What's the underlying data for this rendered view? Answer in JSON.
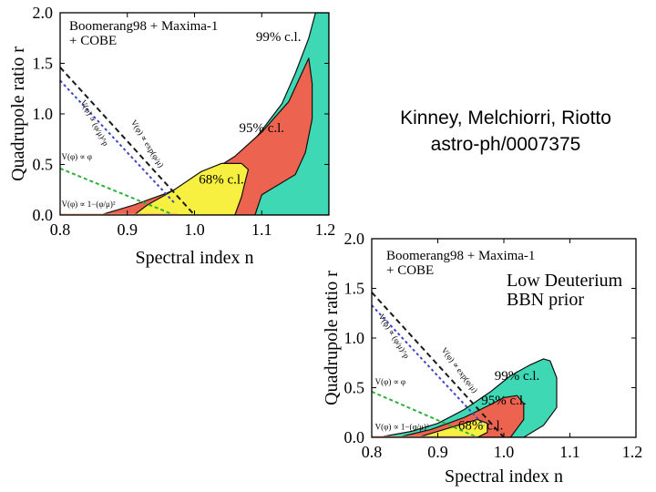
{
  "credit": {
    "authors": "Kinney, Melchiorri, Riotto",
    "reference": "astro-ph/0007375"
  },
  "colors": {
    "cl99": "#3fd8b4",
    "cl95": "#ec6350",
    "cl68": "#f7f040",
    "outline": "#111111",
    "exp_line": "#1a1a1a",
    "phi_p_line": "#3f45c9",
    "phi_line": "#2db13a",
    "one_minus_line": "#e8a080"
  },
  "chart_data": [
    {
      "type": "area",
      "title": "",
      "legend": [
        "Boomerang98 + Maxima-1",
        "+ COBE"
      ],
      "xlabel": "Spectral index n",
      "ylabel": "Quadrupole ratio r",
      "xlim": [
        0.8,
        1.2
      ],
      "ylim": [
        0.0,
        2.0
      ],
      "xticks": [
        "0.8",
        "0.9",
        "1.0",
        "1.1",
        "1.2"
      ],
      "yticks": [
        "0.0",
        "0.5",
        "1.0",
        "1.5",
        "2.0"
      ],
      "regions": [
        {
          "label": "99% c.l.",
          "label_at": [
            1.125,
            1.72
          ],
          "points": [
            [
              0.83,
              0.0
            ],
            [
              0.86,
              0.0
            ],
            [
              0.91,
              0.06
            ],
            [
              0.95,
              0.15
            ],
            [
              1.0,
              0.3
            ],
            [
              1.05,
              0.5
            ],
            [
              1.09,
              0.75
            ],
            [
              1.13,
              1.1
            ],
            [
              1.15,
              1.4
            ],
            [
              1.17,
              1.75
            ],
            [
              1.18,
              2.0
            ],
            [
              1.2,
              2.0
            ],
            [
              1.2,
              0.0
            ]
          ]
        },
        {
          "label": "95% c.l.",
          "label_at": [
            1.1,
            0.82
          ],
          "points": [
            [
              0.86,
              0.0
            ],
            [
              0.91,
              0.1
            ],
            [
              0.96,
              0.22
            ],
            [
              1.01,
              0.37
            ],
            [
              1.06,
              0.58
            ],
            [
              1.1,
              0.82
            ],
            [
              1.14,
              1.12
            ],
            [
              1.165,
              1.48
            ],
            [
              1.17,
              1.55
            ],
            [
              1.175,
              1.3
            ],
            [
              1.175,
              0.95
            ],
            [
              1.165,
              0.62
            ],
            [
              1.15,
              0.4
            ],
            [
              1.12,
              0.28
            ],
            [
              1.1,
              0.2
            ],
            [
              1.09,
              0.0
            ]
          ]
        },
        {
          "label": "68% c.l.",
          "label_at": [
            1.04,
            0.31
          ],
          "points": [
            [
              0.91,
              0.0
            ],
            [
              0.93,
              0.1
            ],
            [
              0.97,
              0.25
            ],
            [
              1.01,
              0.43
            ],
            [
              1.04,
              0.51
            ],
            [
              1.07,
              0.51
            ],
            [
              1.08,
              0.45
            ],
            [
              1.075,
              0.32
            ],
            [
              1.07,
              0.18
            ],
            [
              1.06,
              0.0
            ]
          ]
        }
      ],
      "series": [
        {
          "name": "V(φ) ∝ exp(φ/μ)",
          "x": [
            0.8,
            1.0
          ],
          "y": [
            1.46,
            0.0
          ]
        },
        {
          "name": "V(φ) ∝ (φ/μ)^p",
          "x": [
            0.8,
            0.97
          ],
          "y": [
            1.33,
            0.12
          ]
        },
        {
          "name": "V(φ) ∝ φ",
          "x": [
            0.8,
            0.97
          ],
          "y": [
            0.46,
            0.0
          ]
        },
        {
          "name": "V(φ) ∝ 1−(φ/μ)²",
          "x": [
            0.8,
            0.975
          ],
          "y": [
            0.0,
            0.0
          ]
        }
      ]
    },
    {
      "type": "area",
      "title": "",
      "legend": [
        "Boomerang98 + Maxima-1",
        "+ COBE"
      ],
      "annotation": [
        "Low Deuterium",
        "BBN prior"
      ],
      "xlabel": "Spectral index n",
      "ylabel": "Quadrupole ratio r",
      "xlim": [
        0.8,
        1.2
      ],
      "ylim": [
        0.0,
        2.0
      ],
      "xticks": [
        "0.8",
        "0.9",
        "1.0",
        "1.1",
        "1.2"
      ],
      "yticks": [
        "0.0",
        "0.5",
        "1.0",
        "1.5",
        "2.0"
      ],
      "regions": [
        {
          "label": "99% c.l.",
          "label_at": [
            1.02,
            0.58
          ],
          "points": [
            [
              0.81,
              0.0
            ],
            [
              0.86,
              0.06
            ],
            [
              0.9,
              0.14
            ],
            [
              0.94,
              0.28
            ],
            [
              0.98,
              0.46
            ],
            [
              1.01,
              0.62
            ],
            [
              1.04,
              0.73
            ],
            [
              1.06,
              0.79
            ],
            [
              1.07,
              0.77
            ],
            [
              1.08,
              0.6
            ],
            [
              1.08,
              0.3
            ],
            [
              1.06,
              0.12
            ],
            [
              1.03,
              0.0
            ]
          ]
        },
        {
          "label": "95% c.l.",
          "label_at": [
            1.0,
            0.33
          ],
          "points": [
            [
              0.84,
              0.0
            ],
            [
              0.89,
              0.08
            ],
            [
              0.94,
              0.2
            ],
            [
              0.98,
              0.33
            ],
            [
              1.0,
              0.4
            ],
            [
              1.02,
              0.42
            ],
            [
              1.03,
              0.34
            ],
            [
              1.03,
              0.18
            ],
            [
              1.01,
              0.0
            ]
          ]
        },
        {
          "label": "68% c.l.",
          "label_at": [
            0.965,
            0.08
          ],
          "points": [
            [
              0.87,
              0.0
            ],
            [
              0.91,
              0.08
            ],
            [
              0.94,
              0.14
            ],
            [
              0.96,
              0.18
            ],
            [
              0.975,
              0.14
            ],
            [
              0.975,
              0.05
            ],
            [
              0.96,
              0.0
            ]
          ]
        }
      ],
      "series": [
        {
          "name": "V(φ) ∝ exp(φ/μ)",
          "x": [
            0.8,
            1.0
          ],
          "y": [
            1.46,
            0.0
          ]
        },
        {
          "name": "V(φ) ∝ (φ/μ)^p",
          "x": [
            0.8,
            0.97
          ],
          "y": [
            1.33,
            0.12
          ]
        },
        {
          "name": "V(φ) ∝ φ",
          "x": [
            0.8,
            0.96
          ],
          "y": [
            0.46,
            0.0
          ]
        },
        {
          "name": "V(φ) ∝ 1−(φ/μ)²",
          "x": [
            0.8,
            0.96
          ],
          "y": [
            0.0,
            0.0
          ]
        }
      ]
    }
  ]
}
